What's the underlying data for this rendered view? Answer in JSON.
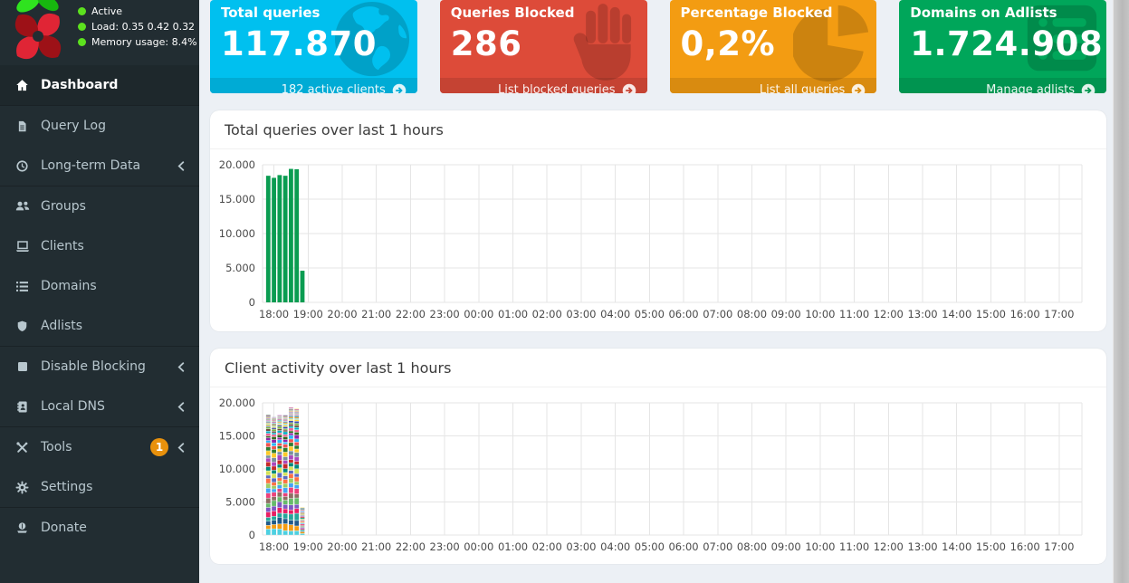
{
  "sidebar": {
    "status": {
      "rows": [
        {
          "label": "Active",
          "value": ""
        },
        {
          "label": "Load:",
          "value": "0.35  0.42  0.32"
        },
        {
          "label": "Memory usage:",
          "value": "8.4%"
        }
      ]
    },
    "menu": [
      {
        "id": "dashboard",
        "label": "Dashboard",
        "icon": "home-icon",
        "active": true
      },
      {
        "id": "query-log",
        "label": "Query Log",
        "icon": "file-icon",
        "sep": true
      },
      {
        "id": "long-term-data",
        "label": "Long-term Data",
        "icon": "history-icon",
        "chevron": true
      },
      {
        "id": "groups",
        "label": "Groups",
        "icon": "users-icon",
        "sep": true
      },
      {
        "id": "clients",
        "label": "Clients",
        "icon": "laptop-icon"
      },
      {
        "id": "domains",
        "label": "Domains",
        "icon": "list-icon"
      },
      {
        "id": "adlists",
        "label": "Adlists",
        "icon": "shield-icon"
      },
      {
        "id": "disable-blocking",
        "label": "Disable Blocking",
        "icon": "stop-icon",
        "chevron": true,
        "sep": true
      },
      {
        "id": "local-dns",
        "label": "Local DNS",
        "icon": "address-book-icon",
        "chevron": true
      },
      {
        "id": "tools",
        "label": "Tools",
        "icon": "wrench-icon",
        "badge": "1",
        "chevron": true,
        "sep": true
      },
      {
        "id": "settings",
        "label": "Settings",
        "icon": "gear-icon"
      },
      {
        "id": "donate",
        "label": "Donate",
        "icon": "donate-icon",
        "sep": true
      }
    ]
  },
  "cards": [
    {
      "id": "total-queries",
      "title": "Total queries",
      "value": "117.870",
      "footer_label": "182 active clients",
      "icon": "globe-icon",
      "color": "#00c0ef",
      "footer_color": "#00abd5"
    },
    {
      "id": "queries-blocked",
      "title": "Queries Blocked",
      "value": "286",
      "footer_label": "List blocked queries",
      "icon": "hand-icon",
      "color": "#dd4b39",
      "footer_color": "#c54333"
    },
    {
      "id": "percentage-blocked",
      "title": "Percentage Blocked",
      "value": "0,2%",
      "footer_label": "List all queries",
      "icon": "pie-chart-icon",
      "color": "#f39c12",
      "footer_color": "#d98b10"
    },
    {
      "id": "domains-adlists",
      "title": "Domains on Adlists",
      "value": "1.724.908",
      "footer_label": "Manage adlists",
      "icon": "list-alt-icon",
      "color": "#00a65a",
      "footer_color": "#009450"
    }
  ],
  "panels": [
    {
      "title": "Total queries over last 1 hours"
    },
    {
      "title": "Client activity over last 1 hours"
    }
  ],
  "chart_data": [
    {
      "type": "bar",
      "title": "Total queries over last 1 hours",
      "x_tick_labels": [
        "18:00",
        "19:00",
        "20:00",
        "21:00",
        "22:00",
        "23:00",
        "00:00",
        "01:00",
        "02:00",
        "03:00",
        "04:00",
        "05:00",
        "06:00",
        "07:00",
        "08:00",
        "09:00",
        "10:00",
        "11:00",
        "12:00",
        "13:00",
        "14:00",
        "15:00",
        "16:00",
        "17:00"
      ],
      "x_axis_start_hour": 17.6667,
      "x_axis_span_hours": 24,
      "bar_times": [
        "17:50",
        "18:00",
        "18:10",
        "18:20",
        "18:30",
        "18:40",
        "18:50"
      ],
      "bar_time_hours": [
        17.8333,
        18.0,
        18.1667,
        18.3333,
        18.5,
        18.6667,
        18.8333
      ],
      "values": [
        18400,
        18100,
        18500,
        18400,
        19400,
        19350,
        4600
      ],
      "bar_color": "#0a9c51",
      "ylim": [
        0,
        20000
      ],
      "y_tick_values": [
        0,
        5000,
        10000,
        15000,
        20000
      ],
      "y_tick_labels": [
        "0",
        "5.000",
        "10.000",
        "15.000",
        "20.000"
      ],
      "grid": true,
      "legend": "none"
    },
    {
      "type": "bar-stacked",
      "title": "Client activity over last 1 hours",
      "x_tick_labels": [
        "18:00",
        "19:00",
        "20:00",
        "21:00",
        "22:00",
        "23:00",
        "00:00",
        "01:00",
        "02:00",
        "03:00",
        "04:00",
        "05:00",
        "06:00",
        "07:00",
        "08:00",
        "09:00",
        "10:00",
        "11:00",
        "12:00",
        "13:00",
        "14:00",
        "15:00",
        "16:00",
        "17:00"
      ],
      "x_axis_start_hour": 17.6667,
      "x_axis_span_hours": 24,
      "bar_times": [
        "17:50",
        "18:00",
        "18:10",
        "18:20",
        "18:30",
        "18:40",
        "18:50"
      ],
      "bar_time_hours": [
        17.8333,
        18.0,
        18.1667,
        18.3333,
        18.5,
        18.6667,
        18.8333
      ],
      "totals": [
        18400,
        18100,
        18500,
        18400,
        19400,
        19350,
        4600
      ],
      "ylim": [
        0,
        20000
      ],
      "y_tick_values": [
        0,
        5000,
        10000,
        15000,
        20000
      ],
      "y_tick_labels": [
        "0",
        "5.000",
        "10.000",
        "15.000",
        "20.000"
      ],
      "grid": true,
      "legend": "none",
      "palette": [
        "#4dd0e1",
        "#f39c12",
        "#1f5a8a",
        "#26a69a",
        "#e91e63",
        "#7e57c2",
        "#66bb6a",
        "#8d6e63",
        "#ec407a",
        "#42a5f5",
        "#9ccc65",
        "#ff7043",
        "#5c6bc0",
        "#d4e157",
        "#00897b",
        "#c62828",
        "#ab47bc",
        "#78909c",
        "#ffca28",
        "#2e7d32",
        "#ef5350",
        "#29b6f6",
        "#8e24aa",
        "#33691e",
        "#f06292",
        "#00acc1",
        "#6d4c41",
        "#7cb342",
        "#3949ab",
        "#fdd835"
      ]
    }
  ]
}
